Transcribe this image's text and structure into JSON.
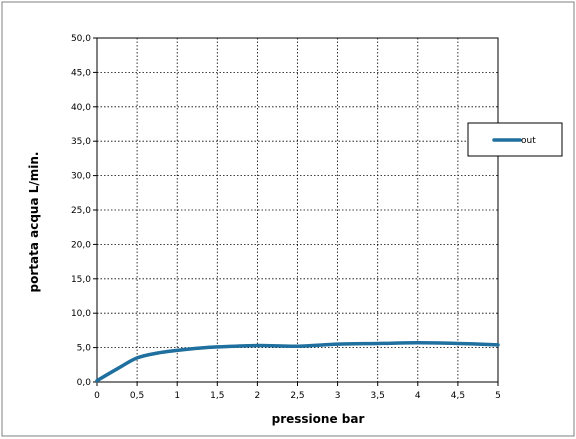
{
  "chart_data": {
    "type": "line",
    "title": "",
    "xlabel": "pressione bar",
    "ylabel": "portata acqua  L/min.",
    "xlim": [
      0,
      5
    ],
    "ylim": [
      0,
      50
    ],
    "grid": true,
    "legend_position": "right",
    "x_ticks": [
      "0",
      "0,5",
      "1",
      "1,5",
      "2",
      "2,5",
      "3",
      "3,5",
      "4",
      "4,5",
      "5"
    ],
    "y_ticks": [
      "0,0",
      "5,0",
      "10,0",
      "15,0",
      "20,0",
      "25,0",
      "30,0",
      "35,0",
      "40,0",
      "45,0",
      "50,0"
    ],
    "series": [
      {
        "name": "out",
        "color": "#1f6f9f",
        "x": [
          0,
          0.25,
          0.5,
          0.75,
          1,
          1.25,
          1.5,
          2,
          2.5,
          3,
          3.5,
          4,
          4.5,
          5
        ],
        "y": [
          0.2,
          1.9,
          3.5,
          4.2,
          4.6,
          4.9,
          5.1,
          5.3,
          5.2,
          5.5,
          5.6,
          5.7,
          5.6,
          5.4
        ]
      }
    ]
  }
}
